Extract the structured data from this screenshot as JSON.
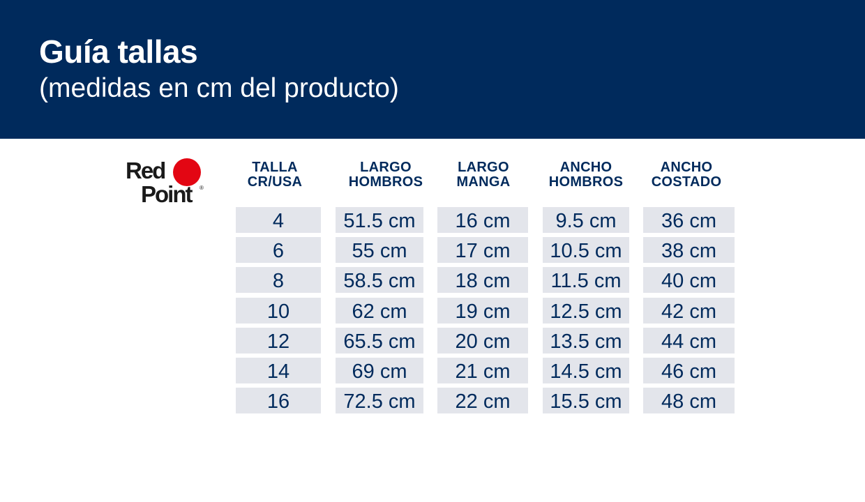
{
  "header": {
    "title": "Guía tallas",
    "subtitle": "(medidas en cm del producto)"
  },
  "logo": {
    "line1": "Red",
    "line2": "Point",
    "registered": "®",
    "dot_color": "#e30613"
  },
  "colors": {
    "banner": "#002a5c",
    "text_navy": "#002a5c",
    "cell_bg": "#e3e5eb"
  },
  "table": {
    "columns": [
      {
        "line1": "TALLA",
        "line2": "CR/USA"
      },
      {
        "line1": "LARGO",
        "line2": "HOMBROS"
      },
      {
        "line1": "LARGO",
        "line2": "MANGA"
      },
      {
        "line1": "ANCHO",
        "line2": "HOMBROS"
      },
      {
        "line1": "ANCHO",
        "line2": "COSTADO"
      }
    ],
    "rows": [
      [
        "4",
        "51.5 cm",
        "16 cm",
        "9.5 cm",
        "36 cm"
      ],
      [
        "6",
        "55 cm",
        "17 cm",
        "10.5 cm",
        "38 cm"
      ],
      [
        "8",
        "58.5 cm",
        "18 cm",
        "11.5 cm",
        "40 cm"
      ],
      [
        "10",
        "62 cm",
        "19 cm",
        "12.5 cm",
        "42 cm"
      ],
      [
        "12",
        "65.5 cm",
        "20 cm",
        "13.5 cm",
        "44 cm"
      ],
      [
        "14",
        "69 cm",
        "21 cm",
        "14.5 cm",
        "46 cm"
      ],
      [
        "16",
        "72.5 cm",
        "22 cm",
        "15.5 cm",
        "48 cm"
      ]
    ]
  }
}
